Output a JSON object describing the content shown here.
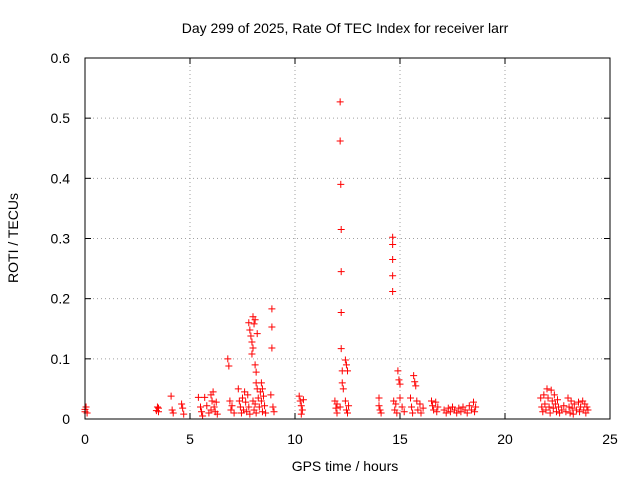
{
  "chart_data": {
    "type": "scatter",
    "title": "Day 299 of 2025, Rate Of TEC Index for receiver larr",
    "xlabel": "GPS time / hours",
    "ylabel": "ROTI / TECUs",
    "xlim": [
      0,
      25
    ],
    "ylim": [
      0,
      0.6
    ],
    "xticks": [
      "0",
      "5",
      "10",
      "15",
      "20",
      "25"
    ],
    "yticks": [
      "0",
      "0.1",
      "0.2",
      "0.3",
      "0.4",
      "0.5",
      "0.6"
    ],
    "grid": true,
    "marker": "plus",
    "color": "#ff0000",
    "series": [
      {
        "points": [
          [
            0.0,
            0.012
          ],
          [
            0.05,
            0.02
          ],
          [
            0.1,
            0.01
          ],
          [
            0.0,
            0.016
          ],
          [
            3.4,
            0.014
          ],
          [
            3.45,
            0.02
          ],
          [
            3.5,
            0.012
          ],
          [
            3.5,
            0.018
          ],
          [
            4.1,
            0.038
          ],
          [
            4.15,
            0.015
          ],
          [
            4.2,
            0.01
          ],
          [
            4.6,
            0.025
          ],
          [
            4.65,
            0.018
          ],
          [
            4.7,
            0.008
          ],
          [
            5.4,
            0.036
          ],
          [
            5.5,
            0.02
          ],
          [
            5.55,
            0.012
          ],
          [
            5.6,
            0.005
          ],
          [
            5.7,
            0.036
          ],
          [
            5.8,
            0.022
          ],
          [
            5.9,
            0.01
          ],
          [
            6.0,
            0.04
          ],
          [
            6.05,
            0.03
          ],
          [
            6.1,
            0.045
          ],
          [
            6.15,
            0.02
          ],
          [
            6.2,
            0.012
          ],
          [
            6.25,
            0.028
          ],
          [
            6.3,
            0.008
          ],
          [
            6.0,
            0.015
          ],
          [
            6.8,
            0.1
          ],
          [
            6.85,
            0.088
          ],
          [
            6.9,
            0.03
          ],
          [
            6.95,
            0.015
          ],
          [
            7.0,
            0.022
          ],
          [
            7.1,
            0.01
          ],
          [
            7.3,
            0.05
          ],
          [
            7.35,
            0.03
          ],
          [
            7.4,
            0.02
          ],
          [
            7.45,
            0.01
          ],
          [
            7.5,
            0.035
          ],
          [
            7.55,
            0.015
          ],
          [
            7.6,
            0.045
          ],
          [
            7.65,
            0.028
          ],
          [
            7.7,
            0.012
          ],
          [
            7.75,
            0.04
          ],
          [
            7.8,
            0.02
          ],
          [
            7.85,
            0.008
          ],
          [
            7.8,
            0.16
          ],
          [
            7.85,
            0.148
          ],
          [
            7.9,
            0.138
          ],
          [
            7.95,
            0.128
          ],
          [
            8.0,
            0.17
          ],
          [
            8.0,
            0.118
          ],
          [
            7.95,
            0.108
          ],
          [
            8.05,
            0.158
          ],
          [
            8.1,
            0.165
          ],
          [
            8.1,
            0.09
          ],
          [
            8.15,
            0.078
          ],
          [
            8.15,
            0.06
          ],
          [
            8.2,
            0.142
          ],
          [
            8.2,
            0.05
          ],
          [
            8.0,
            0.03
          ],
          [
            8.05,
            0.015
          ],
          [
            8.1,
            0.025
          ],
          [
            8.15,
            0.01
          ],
          [
            8.25,
            0.035
          ],
          [
            8.3,
            0.02
          ],
          [
            8.35,
            0.045
          ],
          [
            8.4,
            0.03
          ],
          [
            8.45,
            0.012
          ],
          [
            8.5,
            0.038
          ],
          [
            8.55,
            0.022
          ],
          [
            8.6,
            0.01
          ],
          [
            8.4,
            0.06
          ],
          [
            8.45,
            0.05
          ],
          [
            8.9,
            0.183
          ],
          [
            8.9,
            0.153
          ],
          [
            8.9,
            0.118
          ],
          [
            8.85,
            0.04
          ],
          [
            8.95,
            0.02
          ],
          [
            9.0,
            0.012
          ],
          [
            10.2,
            0.038
          ],
          [
            10.25,
            0.03
          ],
          [
            10.3,
            0.022
          ],
          [
            10.35,
            0.015
          ],
          [
            10.4,
            0.032
          ],
          [
            10.3,
            0.008
          ],
          [
            11.9,
            0.03
          ],
          [
            11.95,
            0.018
          ],
          [
            12.0,
            0.01
          ],
          [
            12.0,
            0.025
          ],
          [
            12.15,
            0.527
          ],
          [
            12.15,
            0.462
          ],
          [
            12.18,
            0.39
          ],
          [
            12.2,
            0.315
          ],
          [
            12.2,
            0.245
          ],
          [
            12.2,
            0.177
          ],
          [
            12.2,
            0.117
          ],
          [
            12.25,
            0.08
          ],
          [
            12.25,
            0.06
          ],
          [
            12.3,
            0.05
          ],
          [
            12.15,
            0.02
          ],
          [
            12.4,
            0.098
          ],
          [
            12.45,
            0.09
          ],
          [
            12.5,
            0.08
          ],
          [
            12.4,
            0.03
          ],
          [
            12.45,
            0.015
          ],
          [
            12.5,
            0.01
          ],
          [
            12.55,
            0.022
          ],
          [
            14.0,
            0.035
          ],
          [
            14.05,
            0.015
          ],
          [
            14.1,
            0.01
          ],
          [
            14.0,
            0.022
          ],
          [
            14.65,
            0.302
          ],
          [
            14.65,
            0.29
          ],
          [
            14.65,
            0.265
          ],
          [
            14.65,
            0.238
          ],
          [
            14.65,
            0.212
          ],
          [
            14.7,
            0.03
          ],
          [
            14.75,
            0.015
          ],
          [
            14.8,
            0.025
          ],
          [
            14.85,
            0.01
          ],
          [
            14.9,
            0.08
          ],
          [
            14.95,
            0.065
          ],
          [
            15.0,
            0.058
          ],
          [
            15.0,
            0.035
          ],
          [
            15.1,
            0.02
          ],
          [
            15.2,
            0.012
          ],
          [
            15.5,
            0.035
          ],
          [
            15.55,
            0.02
          ],
          [
            15.6,
            0.01
          ],
          [
            15.65,
            0.072
          ],
          [
            15.7,
            0.062
          ],
          [
            15.75,
            0.055
          ],
          [
            15.8,
            0.03
          ],
          [
            15.85,
            0.015
          ],
          [
            15.95,
            0.025
          ],
          [
            16.0,
            0.01
          ],
          [
            16.1,
            0.018
          ],
          [
            16.5,
            0.03
          ],
          [
            16.55,
            0.022
          ],
          [
            16.6,
            0.015
          ],
          [
            16.7,
            0.028
          ],
          [
            16.75,
            0.012
          ],
          [
            16.8,
            0.02
          ],
          [
            17.1,
            0.015
          ],
          [
            17.2,
            0.01
          ],
          [
            17.3,
            0.018
          ],
          [
            17.4,
            0.012
          ],
          [
            17.5,
            0.02
          ],
          [
            17.6,
            0.015
          ],
          [
            17.7,
            0.01
          ],
          [
            17.8,
            0.018
          ],
          [
            17.9,
            0.012
          ],
          [
            18.0,
            0.02
          ],
          [
            18.1,
            0.015
          ],
          [
            18.2,
            0.01
          ],
          [
            18.3,
            0.022
          ],
          [
            18.4,
            0.015
          ],
          [
            18.5,
            0.028
          ],
          [
            18.55,
            0.012
          ],
          [
            18.6,
            0.02
          ],
          [
            21.7,
            0.035
          ],
          [
            21.75,
            0.02
          ],
          [
            21.8,
            0.012
          ],
          [
            21.85,
            0.04
          ],
          [
            21.9,
            0.025
          ],
          [
            21.95,
            0.015
          ],
          [
            22.0,
            0.05
          ],
          [
            22.05,
            0.035
          ],
          [
            22.1,
            0.02
          ],
          [
            22.15,
            0.01
          ],
          [
            22.2,
            0.048
          ],
          [
            22.25,
            0.03
          ],
          [
            22.3,
            0.018
          ],
          [
            22.35,
            0.04
          ],
          [
            22.4,
            0.025
          ],
          [
            22.45,
            0.012
          ],
          [
            22.5,
            0.032
          ],
          [
            22.55,
            0.02
          ],
          [
            22.6,
            0.01
          ],
          [
            22.7,
            0.015
          ],
          [
            22.8,
            0.022
          ],
          [
            22.9,
            0.012
          ],
          [
            23.0,
            0.035
          ],
          [
            23.05,
            0.02
          ],
          [
            23.1,
            0.01
          ],
          [
            23.15,
            0.03
          ],
          [
            23.2,
            0.018
          ],
          [
            23.25,
            0.008
          ],
          [
            23.3,
            0.025
          ],
          [
            23.4,
            0.015
          ],
          [
            23.5,
            0.028
          ],
          [
            23.55,
            0.012
          ],
          [
            23.6,
            0.02
          ],
          [
            23.7,
            0.03
          ],
          [
            23.75,
            0.015
          ],
          [
            23.8,
            0.025
          ],
          [
            23.85,
            0.01
          ],
          [
            23.9,
            0.02
          ],
          [
            23.95,
            0.015
          ]
        ]
      }
    ]
  }
}
